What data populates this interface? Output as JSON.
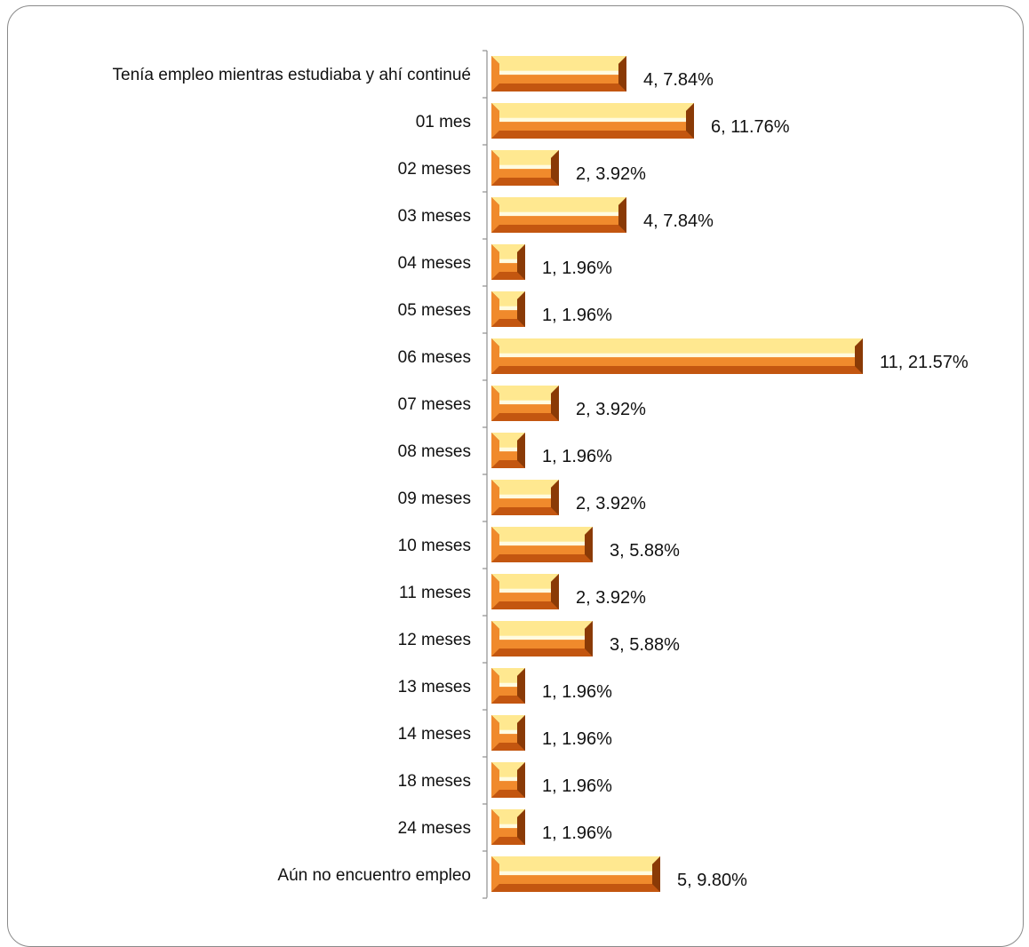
{
  "colors": {
    "bar_outer": "#c35610",
    "bar_mid": "#f08a2c",
    "bar_light": "#ffe890",
    "bar_highlight": "#fffbe0",
    "bar_dark": "#8a3a06",
    "axis": "#8f8f8f",
    "frame": "#8a8a8a"
  },
  "chart_data": {
    "type": "bar",
    "orientation": "horizontal",
    "categories": [
      "Tenía empleo mientras estudiaba y ahí continué",
      "01 mes",
      "02 meses",
      "03 meses",
      "04 meses",
      "05 meses",
      "06 meses",
      "07 meses",
      "08 meses",
      "09 meses",
      "10 meses",
      "11 meses",
      "12 meses",
      "13 meses",
      "14 meses",
      "18 meses",
      "24 meses",
      "Aún no encuentro empleo"
    ],
    "values": [
      4,
      6,
      2,
      4,
      1,
      1,
      11,
      2,
      1,
      2,
      3,
      2,
      3,
      1,
      1,
      1,
      1,
      5
    ],
    "data_labels": [
      "4, 7.84%",
      "6, 11.76%",
      "2, 3.92%",
      "4, 7.84%",
      "1, 1.96%",
      "1, 1.96%",
      "11, 21.57%",
      "2, 3.92%",
      "1, 1.96%",
      "2, 3.92%",
      "3, 5.88%",
      "2, 3.92%",
      "3, 5.88%",
      "1, 1.96%",
      "1, 1.96%",
      "1, 1.96%",
      "1, 1.96%",
      "5, 9.80%"
    ],
    "title": "",
    "xlabel": "",
    "ylabel": "",
    "xlim": [
      0,
      11
    ],
    "grid": false,
    "legend": "none"
  }
}
